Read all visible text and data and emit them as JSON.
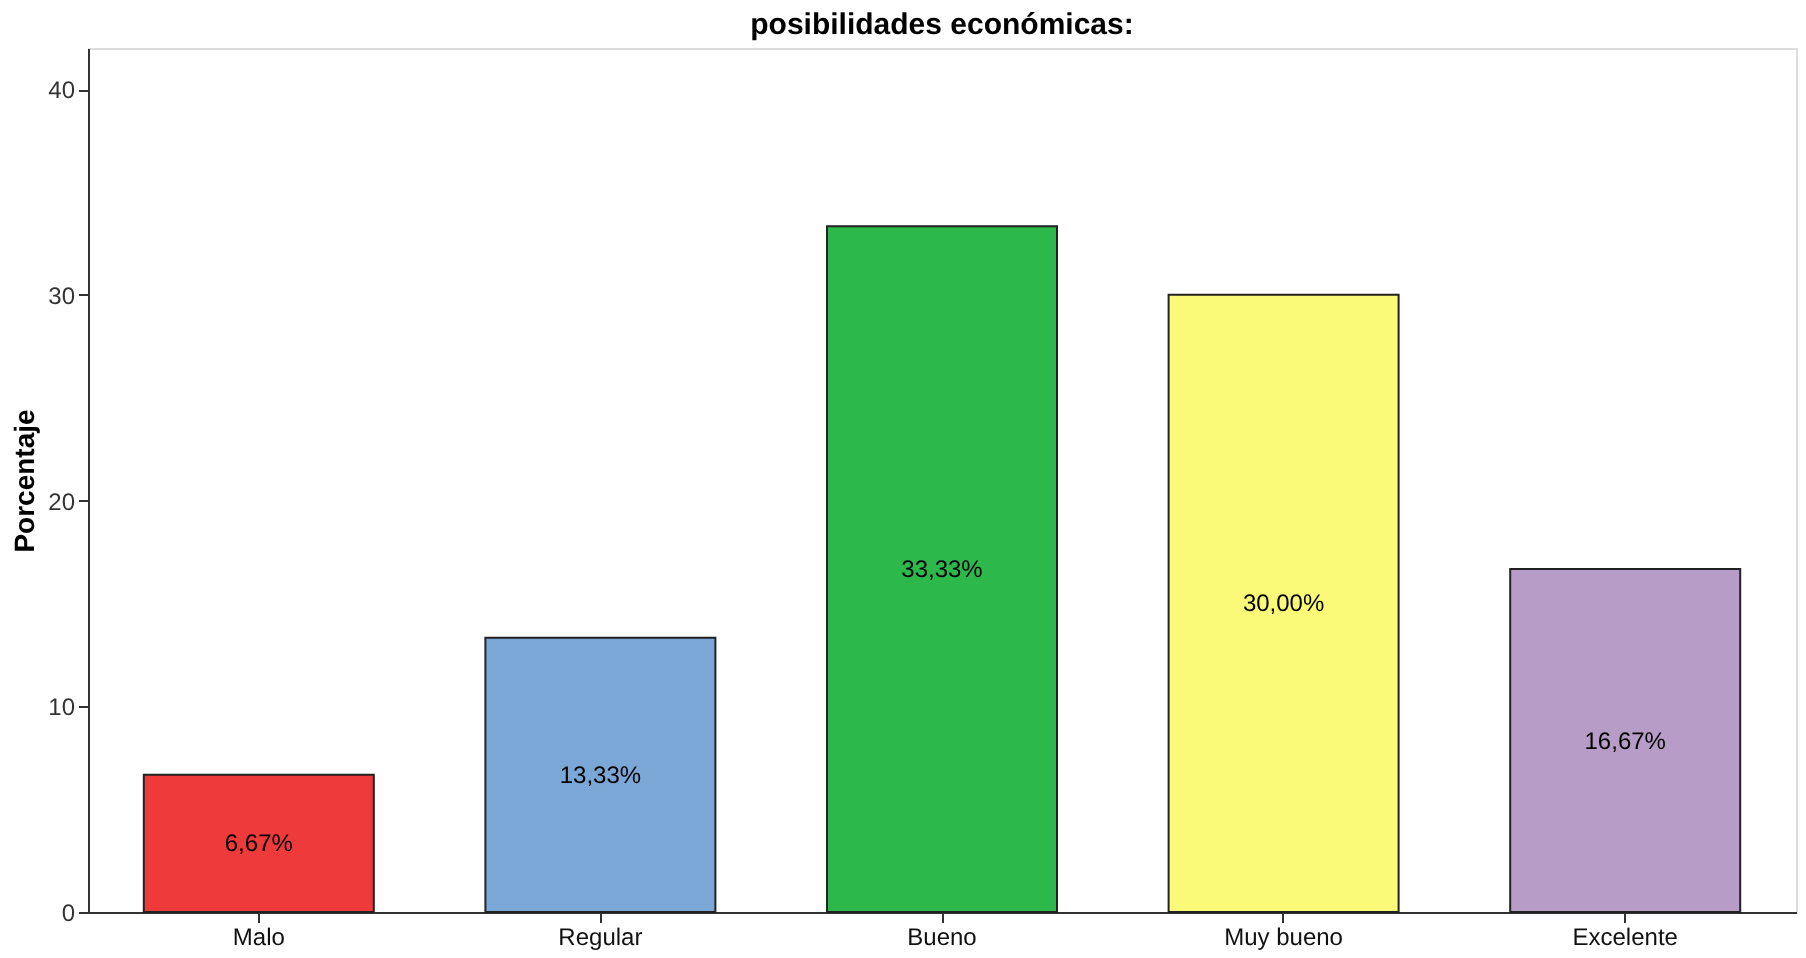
{
  "chart_data": {
    "type": "bar",
    "title": "posibilidades económicas:",
    "ylabel": "Porcentaje",
    "categories": [
      "Malo",
      "Regular",
      "Bueno",
      "Muy bueno",
      "Excelente"
    ],
    "values": [
      6.67,
      13.33,
      33.33,
      30.0,
      16.67
    ],
    "colors": [
      "#ee3a3a",
      "#7ba7d6",
      "#2db84b",
      "#fafa78",
      "#b89cc8"
    ],
    "value_labels": [
      "6,67%",
      "13,33%",
      "33,33%",
      "30,00%",
      "16,67%"
    ],
    "ylim": [
      0,
      42
    ],
    "yticks": [
      0,
      10,
      20,
      30,
      40
    ],
    "grid": false,
    "legend": false
  }
}
